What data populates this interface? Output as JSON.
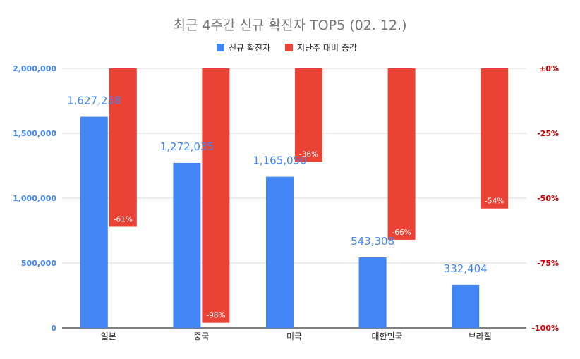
{
  "chart_data": {
    "type": "bar",
    "title": "최근 4주간 신규 확진자 TOP5 (02. 12.)",
    "categories": [
      "일본",
      "중국",
      "미국",
      "대한민국",
      "브라질"
    ],
    "series": [
      {
        "name": "신규 확진자",
        "axis": "left",
        "color": "#4285f4",
        "values": [
          1627258,
          1272035,
          1165050,
          543308,
          332404
        ],
        "labels": [
          "1,627,258",
          "1,272,035",
          "1,165,050",
          "543,308",
          "332,404"
        ]
      },
      {
        "name": "지난주 대비 증감",
        "axis": "right",
        "color": "#ea4335",
        "values": [
          -61,
          -98,
          -36,
          -66,
          -54
        ],
        "labels": [
          "-61%",
          "-98%",
          "-36%",
          "-66%",
          "-54%"
        ]
      }
    ],
    "left_axis": {
      "ylim": [
        0,
        2000000
      ],
      "ticks": [
        0,
        500000,
        1000000,
        1500000,
        2000000
      ],
      "tick_labels": [
        "0",
        "500,000",
        "1,000,000",
        "1,500,000",
        "2,000,000"
      ],
      "color": "#4285f4"
    },
    "right_axis": {
      "ylim": [
        -100,
        0
      ],
      "ticks": [
        0,
        -25,
        -50,
        -75,
        -100
      ],
      "tick_labels": [
        "±0%",
        "-25%",
        "-50%",
        "-75%",
        "-100%"
      ],
      "color": "#cc0000"
    },
    "legend_position": "top-center",
    "grid": true,
    "title_color": "#757575"
  }
}
